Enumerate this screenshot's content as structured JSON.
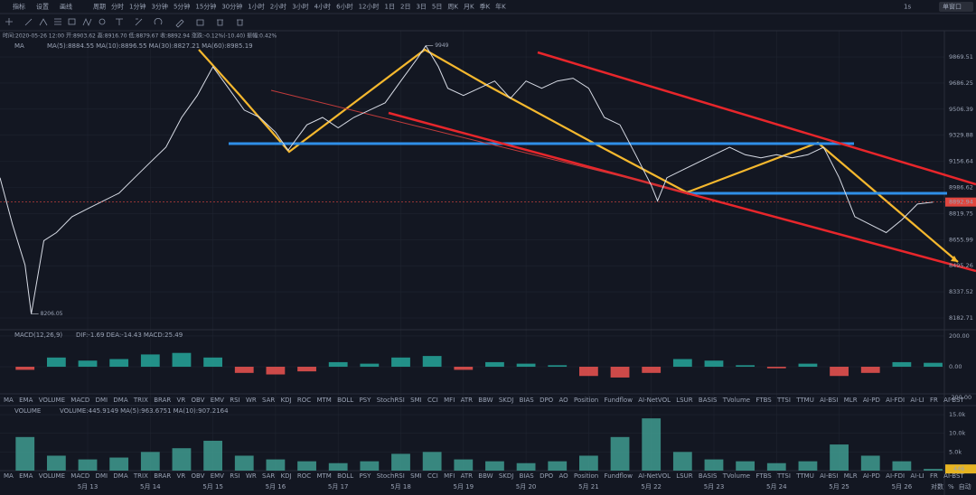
{
  "toolbar": {
    "left": [
      "指标",
      "设置",
      "画线"
    ],
    "periods": [
      "周期",
      "分时",
      "1分钟",
      "3分钟",
      "5分钟",
      "15分钟",
      "30分钟",
      "1小时",
      "2小时",
      "3小时",
      "4小时",
      "6小时",
      "12小时",
      "1日",
      "2日",
      "3日",
      "5日",
      "周K",
      "月K",
      "季K",
      "年K"
    ],
    "right": [
      "1s",
      "单窗口"
    ]
  },
  "info": "时间:2020-05-26 12:00 开:8903.62 高:8916.70 低:8879.67 收:8892.94 涨跌:-0.12%(-10.40) 振幅:0.42%",
  "indicator_tabs": [
    "MA",
    "EMA",
    "VOLUME",
    "MACD",
    "DMI",
    "DMA",
    "TRIX",
    "BRAR",
    "VR",
    "OBV",
    "EMV",
    "RSI",
    "WR",
    "SAR",
    "KDJ",
    "ROC",
    "MTM",
    "BOLL",
    "PSY",
    "StochRSI",
    "SMI",
    "CCI",
    "MFI",
    "ATR",
    "BBW",
    "SKDJ",
    "BIAS",
    "DPO",
    "AO",
    "Position",
    "Fundflow",
    "AI-NetVOL",
    "LSUR",
    "BASIS",
    "TVolume",
    "FTBS",
    "TTSI",
    "TTMU",
    "AI-BSI",
    "MLR",
    "AI-PD",
    "AI-FDI",
    "AI-LI",
    "FR",
    "AI-BST"
  ],
  "footer": [
    "对数",
    "%",
    "自动"
  ],
  "chart_data": [
    {
      "type": "line",
      "title": "MA",
      "legend": [
        {
          "label": "MA(5):8884.55",
          "color": "#e8e8e8"
        },
        {
          "label": "MA(10):8896.55",
          "color": "#e6b422"
        },
        {
          "label": "MA(30):8827.21",
          "color": "#c2459b"
        },
        {
          "label": "MA(60):8985.19",
          "color": "#3fb7a8"
        }
      ],
      "x": [
        11.6,
        11.8,
        12.0,
        12.1,
        12.3,
        12.5,
        12.75,
        13.0,
        13.25,
        13.5,
        13.75,
        14.0,
        14.25,
        14.5,
        14.75,
        15.0,
        15.25,
        15.5,
        15.75,
        16.0,
        16.2,
        16.5,
        16.75,
        17.0,
        17.25,
        17.5,
        17.75,
        18.0,
        18.25,
        18.4,
        18.6,
        18.75,
        19.0,
        19.25,
        19.5,
        19.75,
        20.0,
        20.25,
        20.5,
        20.75,
        21.0,
        21.25,
        21.5,
        21.75,
        22.0,
        22.1,
        22.25,
        22.5,
        22.75,
        23.0,
        23.25,
        23.5,
        23.75,
        24.0,
        24.25,
        24.5,
        24.75,
        25.0,
        25.1,
        25.25,
        25.5,
        25.75,
        26.0,
        26.25,
        26.5
      ],
      "values": [
        9050,
        8750,
        8500,
        8206,
        8650,
        8700,
        8800,
        8850,
        8900,
        8950,
        9050,
        9150,
        9250,
        9450,
        9600,
        9800,
        9650,
        9500,
        9450,
        9350,
        9230,
        9400,
        9450,
        9380,
        9450,
        9500,
        9550,
        9700,
        9850,
        9949,
        9800,
        9650,
        9600,
        9650,
        9700,
        9580,
        9700,
        9650,
        9700,
        9720,
        9650,
        9450,
        9400,
        9200,
        9000,
        8900,
        9050,
        9100,
        9150,
        9200,
        9250,
        9200,
        9180,
        9200,
        9180,
        9200,
        9250,
        9050,
        8950,
        8800,
        8750,
        8700,
        8780,
        8880,
        8893
      ],
      "color": "#d8dce6",
      "xlim": [
        11.6,
        26.68
      ],
      "ylim": [
        8114,
        10018
      ],
      "log": true,
      "grid": true,
      "yticks": [
        9869.51,
        9686.25,
        9506.39,
        9329.88,
        9156.64,
        8986.62,
        8819.75,
        8655.99,
        8495.26,
        8337.52,
        8182.71
      ],
      "current_price": 8892.94,
      "current_color": "#e0463f",
      "annotations": [
        {
          "x": 18.4,
          "value": 9949
        },
        {
          "x": 12.1,
          "value": 8206.05
        }
      ]
    },
    {
      "type": "bar",
      "title": "MACD(12,26,9)",
      "legend": [
        {
          "label": "DIF:-1.69",
          "color": "#e8e8e8"
        },
        {
          "label": "DEA:-14.43",
          "color": "#e6b422"
        },
        {
          "label": "MACD:25.49",
          "color": "#3fb7a8"
        }
      ],
      "x": [
        12.0,
        12.5,
        13.0,
        13.5,
        14.0,
        14.5,
        15.0,
        15.5,
        16.0,
        16.5,
        17.0,
        17.5,
        18.0,
        18.5,
        19.0,
        19.5,
        20.0,
        20.5,
        21.0,
        21.5,
        22.0,
        22.5,
        23.0,
        23.5,
        24.0,
        24.5,
        25.0,
        25.5,
        26.0,
        26.5
      ],
      "values": [
        -20,
        60,
        40,
        50,
        80,
        90,
        60,
        -40,
        -50,
        -30,
        30,
        20,
        60,
        70,
        -20,
        30,
        20,
        10,
        -60,
        -70,
        -40,
        50,
        40,
        10,
        -10,
        20,
        -60,
        -40,
        30,
        25.49
      ],
      "up_color": "#26a69a",
      "down_color": "#ef5350",
      "xlim": [
        11.6,
        26.68
      ],
      "ylim": [
        -229,
        241
      ],
      "yticks": [
        {
          "value": 200,
          "label": "200.00"
        },
        {
          "value": 0,
          "label": "0.00"
        },
        {
          "value": -200,
          "label": "-200.00"
        }
      ]
    },
    {
      "type": "bar",
      "title": "VOLUME",
      "legend": [
        {
          "label": "VOLUME:445.9149",
          "color": "#e8e8e8"
        },
        {
          "label": "MA(5):963.6751",
          "color": "#e8e8e8"
        },
        {
          "label": "MA(10):907.2164",
          "color": "#e6b422"
        }
      ],
      "x": [
        12.0,
        12.5,
        13.0,
        13.5,
        14.0,
        14.5,
        15.0,
        15.5,
        16.0,
        16.5,
        17.0,
        17.5,
        18.0,
        18.5,
        19.0,
        19.5,
        20.0,
        20.5,
        21.0,
        21.5,
        22.0,
        22.5,
        23.0,
        23.5,
        24.0,
        24.5,
        25.0,
        25.5,
        26.0,
        26.5
      ],
      "values": [
        9000,
        4000,
        3000,
        3500,
        5000,
        6000,
        8000,
        4000,
        3000,
        2500,
        2000,
        2500,
        4500,
        5000,
        3000,
        2500,
        2000,
        2500,
        4000,
        9000,
        14000,
        5000,
        3000,
        2500,
        2000,
        2500,
        7000,
        4000,
        2500,
        446
      ],
      "color": "#3f9b8f",
      "xlim": [
        11.6,
        26.68
      ],
      "ylim": [
        0,
        16700
      ],
      "yticks": [
        {
          "value": 15000,
          "label": "15.0k"
        },
        {
          "value": 10000,
          "label": "10.0k"
        },
        {
          "value": 5000,
          "label": "5.0k"
        }
      ],
      "current_value": 446,
      "current_color": "#e6b422",
      "xticks": [
        {
          "value": 13,
          "label": "5月 13"
        },
        {
          "value": 14,
          "label": "5月 14"
        },
        {
          "value": 15,
          "label": "5月 15"
        },
        {
          "value": 16,
          "label": "5月 16"
        },
        {
          "value": 17,
          "label": "5月 17"
        },
        {
          "value": 18,
          "label": "5月 18"
        },
        {
          "value": 19,
          "label": "5月 19"
        },
        {
          "value": 20,
          "label": "5月 20"
        },
        {
          "value": 21,
          "label": "5月 21"
        },
        {
          "value": 22,
          "label": "5月 22"
        },
        {
          "value": 23,
          "label": "5月 23"
        },
        {
          "value": 24,
          "label": "5月 24"
        },
        {
          "value": 25,
          "label": "5月 25"
        },
        {
          "value": 26,
          "label": "5月 26"
        }
      ]
    }
  ]
}
